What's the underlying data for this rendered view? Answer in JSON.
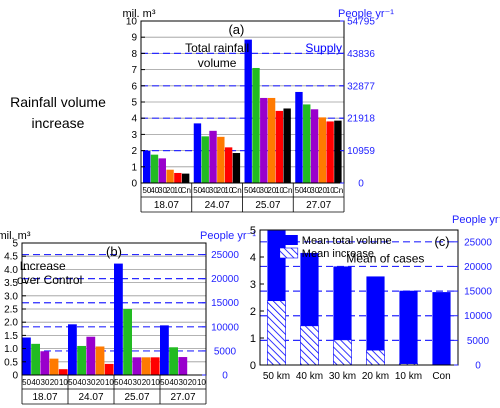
{
  "figure": {
    "side_title": [
      "Rainfall volume",
      "increase"
    ]
  },
  "colors": {
    "blue": "#0000ff",
    "green": "#22bb22",
    "purple": "#9900cc",
    "orange": "#ff7a00",
    "red": "#ff0000",
    "black": "#000000",
    "axis_right": "#2222ff",
    "ref_line": "#2a2aff"
  },
  "chart_data": [
    {
      "id": "a",
      "type": "bar",
      "panel_label": "(a)",
      "ylabel_left": "mil. m³",
      "ylabel_right": "People yr⁻¹",
      "ylim": [
        0,
        10
      ],
      "yticks": [
        0,
        1,
        2,
        3,
        4,
        5,
        6,
        7,
        8,
        9,
        10
      ],
      "right_ticks": [
        "0",
        "10959",
        "21918",
        "32877",
        "43836",
        "54795"
      ],
      "right_tick_values": [
        0,
        2,
        4,
        6,
        8,
        10
      ],
      "ref_lines": [
        2,
        4,
        6,
        8
      ],
      "grid": true,
      "annotations": [
        {
          "text": "Total rainfall",
          "x": 1.5,
          "y": 8.1
        },
        {
          "text": "volume",
          "x": 1.5,
          "y": 7.15
        },
        {
          "text": "Supply",
          "x": 3.6,
          "y": 8.1,
          "color": "blue"
        }
      ],
      "groups": [
        "18.07",
        "24.07",
        "25.07",
        "27.07"
      ],
      "sub_labels": [
        "50",
        "40",
        "30",
        "20",
        "10",
        "Cn"
      ],
      "sub_colors": [
        "blue",
        "green",
        "purple",
        "orange",
        "red",
        "black"
      ],
      "values": [
        [
          1.98,
          1.75,
          1.52,
          0.82,
          0.62,
          0.58
        ],
        [
          3.68,
          2.88,
          3.22,
          2.85,
          2.2,
          1.85
        ],
        [
          8.85,
          7.1,
          5.25,
          5.25,
          4.45,
          4.6
        ],
        [
          5.62,
          4.85,
          4.55,
          4.05,
          3.8,
          3.85
        ]
      ]
    },
    {
      "id": "b",
      "type": "bar",
      "panel_label": "(b)",
      "ylabel_left": "mil. m³",
      "ylabel_right": "People yr⁻¹",
      "ylim": [
        0,
        5
      ],
      "yticks": [
        0,
        0.5,
        1,
        1.5,
        2,
        2.5,
        3,
        3.5,
        4,
        4.5,
        5
      ],
      "ytick_labels": [
        "0",
        "0.5",
        "1.0",
        "1.5",
        "2.0",
        "2.5",
        "3.0",
        "3.5",
        "4.0",
        "4.5",
        "5"
      ],
      "right_ticks": [
        "0",
        "5000",
        "10000",
        "15000",
        "20000",
        "25000"
      ],
      "right_tick_values": [
        0,
        0.912,
        1.825,
        2.737,
        3.65,
        4.562
      ],
      "ref_lines": [
        0.912,
        1.825,
        2.737,
        3.65,
        4.562
      ],
      "grid": true,
      "annotations": [
        {
          "text": "Increase",
          "x": 0.45,
          "y": 3.98
        },
        {
          "text": "over Control",
          "x": 0.6,
          "y": 3.45
        }
      ],
      "groups": [
        "18.07",
        "24.07",
        "25.07",
        "27.07"
      ],
      "sub_labels": [
        "50",
        "40",
        "30",
        "20",
        "10"
      ],
      "sub_colors": [
        "blue",
        "green",
        "purple",
        "orange",
        "red"
      ],
      "values": [
        [
          1.42,
          1.18,
          0.9,
          0.62,
          0.22
        ],
        [
          1.92,
          1.1,
          1.45,
          1.08,
          0.42
        ],
        [
          4.22,
          2.5,
          0.67,
          0.67,
          0.67
        ],
        [
          1.88,
          1.05,
          0.68,
          0.0,
          0.0
        ]
      ]
    },
    {
      "id": "c",
      "type": "bar",
      "panel_label": "(c)",
      "ylabel_right": "People yr⁻¹",
      "ylim": [
        0,
        5
      ],
      "yticks": [
        0,
        1,
        2,
        3,
        4,
        5
      ],
      "right_ticks": [
        "0",
        "5000",
        "10000",
        "15000",
        "20000",
        "25000"
      ],
      "right_tick_values": [
        0,
        0.912,
        1.825,
        2.737,
        3.65,
        4.562
      ],
      "ref_lines": [
        0.912,
        1.825,
        2.737,
        3.65,
        4.562
      ],
      "grid": false,
      "categories": [
        "50 km",
        "40 km",
        "30 km",
        "20 km",
        "10 km",
        "Con"
      ],
      "series": [
        {
          "name": "Mean total volume",
          "values": [
            4.98,
            4.15,
            3.65,
            3.28,
            2.75,
            2.7
          ],
          "style": "solid"
        },
        {
          "name": "Mean increase",
          "values": [
            2.38,
            1.45,
            0.93,
            0.55,
            0.05,
            0.0
          ],
          "style": "hatch"
        }
      ],
      "annotations": [
        {
          "text": "Mean of cases",
          "x": 3.8,
          "y": 3.8
        }
      ],
      "legend": "top-left"
    }
  ]
}
